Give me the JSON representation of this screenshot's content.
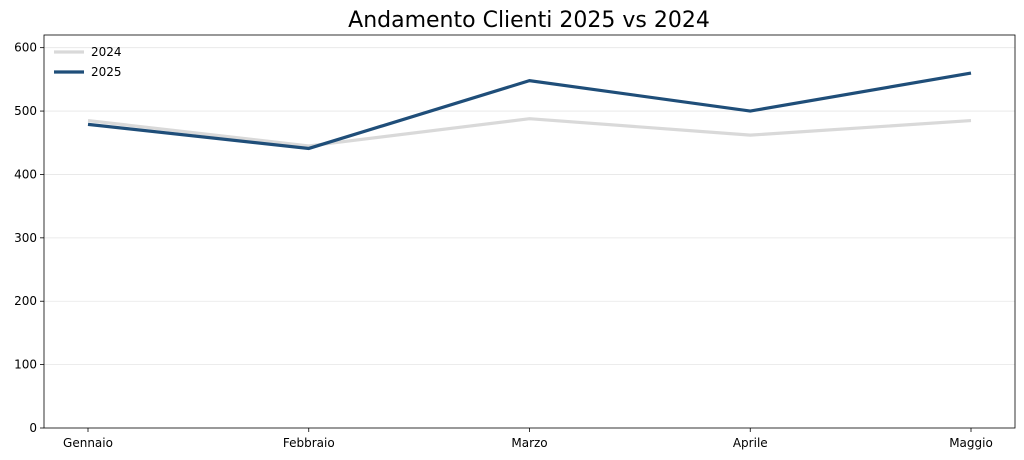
{
  "chart_data": {
    "type": "line",
    "title": "Andamento Clienti 2025 vs 2024",
    "xlabel": "",
    "ylabel": "",
    "categories": [
      "Gennaio",
      "Febbraio",
      "Marzo",
      "Aprile",
      "Maggio"
    ],
    "ylim": [
      0,
      620
    ],
    "yticks": [
      0,
      100,
      200,
      300,
      400,
      500,
      600
    ],
    "grid": "horizontal",
    "legend_position": "top-left",
    "series": [
      {
        "name": "2024",
        "color": "#d9d9d9",
        "values": [
          485,
          445,
          488,
          462,
          485
        ]
      },
      {
        "name": "2025",
        "color": "#1f4e79",
        "values": [
          479,
          441,
          548,
          500,
          560
        ]
      }
    ]
  }
}
